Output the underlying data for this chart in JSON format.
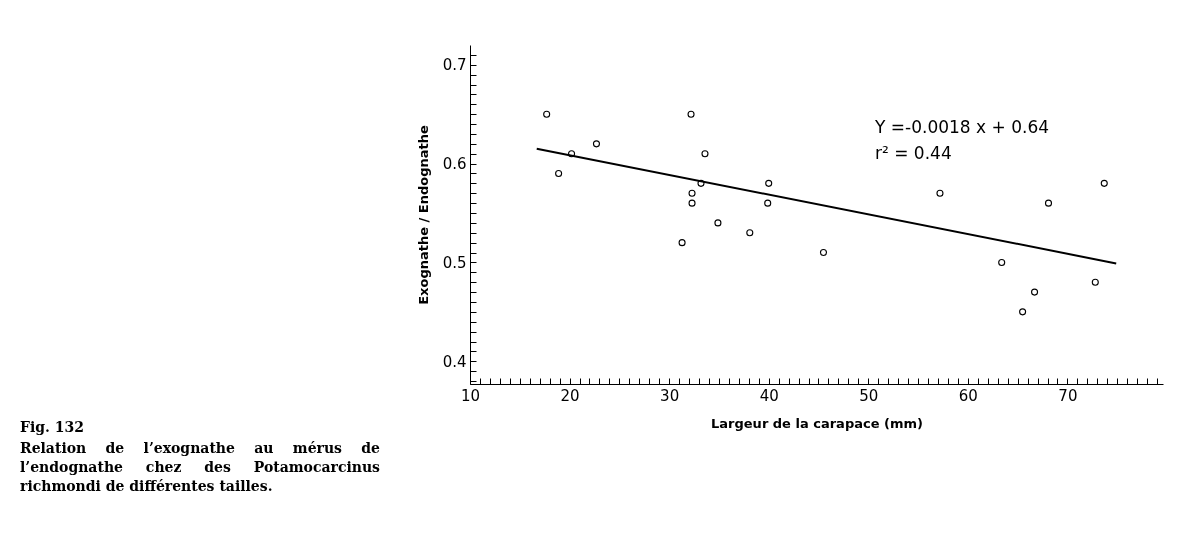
{
  "chart_data": {
    "type": "scatter",
    "xlabel": "Largeur de la carapace (mm)",
    "ylabel": "Exognathe / Endognathe",
    "grid": false,
    "xlim": [
      10,
      79.6
    ],
    "xticks": [
      10,
      {
        "value": 11,
        "label": null
      },
      {
        "value": 12,
        "label": null
      },
      {
        "value": 13,
        "label": null
      },
      {
        "value": 14,
        "label": null
      },
      {
        "value": 15,
        "label": null
      },
      {
        "value": 16,
        "label": null
      },
      {
        "value": 17,
        "label": null
      },
      {
        "value": 18,
        "label": null
      },
      {
        "value": 19,
        "label": null
      },
      20,
      {
        "value": 21,
        "label": null
      },
      {
        "value": 22,
        "label": null
      },
      {
        "value": 23,
        "label": null
      },
      {
        "value": 24,
        "label": null
      },
      {
        "value": 25,
        "label": null
      },
      {
        "value": 26,
        "label": null
      },
      {
        "value": 27,
        "label": null
      },
      {
        "value": 28,
        "label": null
      },
      {
        "value": 29,
        "label": null
      },
      30,
      {
        "value": 31,
        "label": null
      },
      {
        "value": 32,
        "label": null
      },
      {
        "value": 33,
        "label": null
      },
      {
        "value": 34,
        "label": null
      },
      {
        "value": 35,
        "label": null
      },
      {
        "value": 36,
        "label": null
      },
      {
        "value": 37,
        "label": null
      },
      {
        "value": 38,
        "label": null
      },
      {
        "value": 39,
        "label": null
      },
      40,
      {
        "value": 41,
        "label": null
      },
      {
        "value": 42,
        "label": null
      },
      {
        "value": 43,
        "label": null
      },
      {
        "value": 44,
        "label": null
      },
      {
        "value": 45,
        "label": null
      },
      {
        "value": 46,
        "label": null
      },
      {
        "value": 47,
        "label": null
      },
      {
        "value": 48,
        "label": null
      },
      {
        "value": 49,
        "label": null
      },
      50,
      {
        "value": 51,
        "label": null
      },
      {
        "value": 52,
        "label": null
      },
      {
        "value": 53,
        "label": null
      },
      {
        "value": 54,
        "label": null
      },
      {
        "value": 55,
        "label": null
      },
      {
        "value": 56,
        "label": null
      },
      {
        "value": 57,
        "label": null
      },
      {
        "value": 58,
        "label": null
      },
      {
        "value": 59,
        "label": null
      },
      60,
      {
        "value": 61,
        "label": null
      },
      {
        "value": 62,
        "label": null
      },
      {
        "value": 63,
        "label": null
      },
      {
        "value": 64,
        "label": null
      },
      {
        "value": 65,
        "label": null
      },
      {
        "value": 66,
        "label": null
      },
      {
        "value": 67,
        "label": null
      },
      {
        "value": 68,
        "label": null
      },
      {
        "value": 69,
        "label": null
      },
      70,
      {
        "value": 71,
        "label": null
      },
      {
        "value": 72,
        "label": null
      },
      {
        "value": 73,
        "label": null
      },
      {
        "value": 74,
        "label": null
      },
      {
        "value": 75,
        "label": null
      },
      {
        "value": 76,
        "label": null
      },
      {
        "value": 77,
        "label": null
      },
      {
        "value": 78,
        "label": null
      },
      {
        "value": 79,
        "label": null
      }
    ],
    "ylim": [
      0.377,
      0.72
    ],
    "yticks": [
      {
        "value": 0.38,
        "label": null
      },
      {
        "value": 0.39,
        "label": null
      },
      0.4,
      {
        "value": 0.41,
        "label": null
      },
      {
        "value": 0.42,
        "label": null
      },
      {
        "value": 0.43,
        "label": null
      },
      {
        "value": 0.44,
        "label": null
      },
      {
        "value": 0.45,
        "label": null
      },
      {
        "value": 0.46,
        "label": null
      },
      {
        "value": 0.47,
        "label": null
      },
      {
        "value": 0.48,
        "label": null
      },
      {
        "value": 0.49,
        "label": null
      },
      0.5,
      {
        "value": 0.51,
        "label": null
      },
      {
        "value": 0.52,
        "label": null
      },
      {
        "value": 0.53,
        "label": null
      },
      {
        "value": 0.54,
        "label": null
      },
      {
        "value": 0.55,
        "label": null
      },
      {
        "value": 0.56,
        "label": null
      },
      {
        "value": 0.57,
        "label": null
      },
      {
        "value": 0.58,
        "label": null
      },
      {
        "value": 0.59,
        "label": null
      },
      0.6,
      {
        "value": 0.61,
        "label": null
      },
      {
        "value": 0.62,
        "label": null
      },
      {
        "value": 0.63,
        "label": null
      },
      {
        "value": 0.64,
        "label": null
      },
      {
        "value": 0.65,
        "label": null
      },
      {
        "value": 0.66,
        "label": null
      },
      {
        "value": 0.67,
        "label": null
      },
      {
        "value": 0.68,
        "label": null
      },
      {
        "value": 0.69,
        "label": null
      },
      0.7,
      {
        "value": 0.71,
        "label": null
      }
    ],
    "series": [
      {
        "color": "#000000",
        "marker": "circle",
        "x": [
          17.7,
          18.9,
          20.2,
          22.7,
          32.2,
          33.6,
          33.2,
          32.3,
          32.3,
          31.3,
          34.9,
          38.1,
          40.0,
          39.9,
          45.5,
          57.2,
          63.4,
          65.5,
          66.7,
          68.1,
          72.8,
          73.7
        ],
        "values": [
          0.65,
          0.59,
          0.61,
          0.62,
          0.65,
          0.61,
          0.58,
          0.57,
          0.56,
          0.52,
          0.54,
          0.53,
          0.58,
          0.56,
          0.51,
          0.57,
          0.5,
          0.45,
          0.47,
          0.56,
          0.48,
          0.58
        ]
      },
      {
        "type": "line",
        "color": "#000000",
        "x": [
          16.7,
          74.9
        ],
        "values": [
          0.615,
          0.499
        ]
      }
    ],
    "annotations": [
      "Y =-0.0018 x + 0.64",
      "r² = 0.44",
      "Fig. 132",
      "Relation de l’exognathe au mérus de l’endognathe chez des Potamocarcinus richmondi de différentes tailles."
    ]
  }
}
